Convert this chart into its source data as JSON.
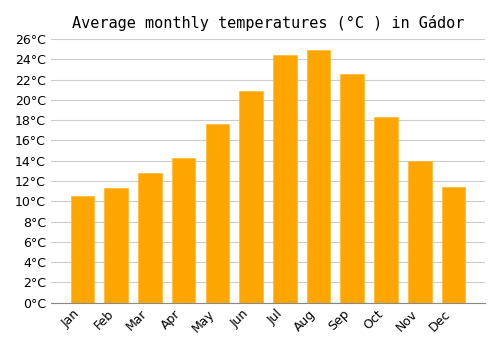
{
  "title": "Average monthly temperatures (°C ) in Gádor",
  "months": [
    "Jan",
    "Feb",
    "Mar",
    "Apr",
    "May",
    "Jun",
    "Jul",
    "Aug",
    "Sep",
    "Oct",
    "Nov",
    "Dec"
  ],
  "temperatures": [
    10.5,
    11.3,
    12.8,
    14.3,
    17.6,
    20.9,
    24.4,
    24.9,
    22.6,
    18.3,
    14.0,
    11.4
  ],
  "bar_color": "#FFA500",
  "bar_edge_color": "#FFB833",
  "ylim": [
    0,
    26
  ],
  "yticks": [
    0,
    2,
    4,
    6,
    8,
    10,
    12,
    14,
    16,
    18,
    20,
    22,
    24,
    26
  ],
  "background_color": "#ffffff",
  "grid_color": "#cccccc",
  "title_fontsize": 11,
  "tick_fontsize": 9
}
